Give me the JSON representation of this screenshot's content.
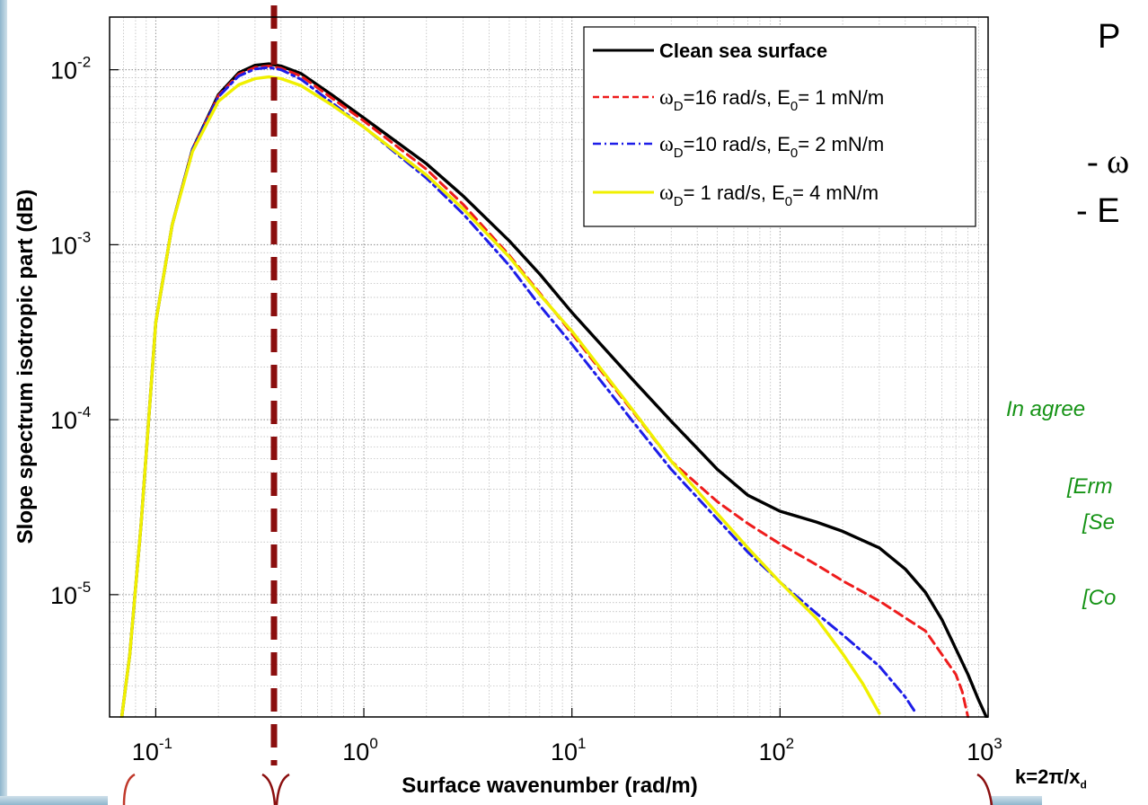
{
  "chart_data": {
    "type": "line",
    "title": "",
    "xlabel": "Surface wavenumber (rad/m)",
    "ylabel": "Slope spectrum isotropic part (dB)",
    "xscale": "log",
    "yscale": "log",
    "xlim": [
      0.06,
      1000
    ],
    "ylim": [
      2e-06,
      0.02
    ],
    "grid": true,
    "legend_position": "top-right",
    "x_ticks": [
      {
        "value": 0.1,
        "base": "10",
        "exp": "-1"
      },
      {
        "value": 1,
        "base": "10",
        "exp": "0"
      },
      {
        "value": 10,
        "base": "10",
        "exp": "1"
      },
      {
        "value": 100,
        "base": "10",
        "exp": "2"
      },
      {
        "value": 1000,
        "base": "10",
        "exp": "3"
      }
    ],
    "y_ticks": [
      {
        "value": 0.01,
        "base": "10",
        "exp": "-2"
      },
      {
        "value": 0.001,
        "base": "10",
        "exp": "-3"
      },
      {
        "value": 0.0001,
        "base": "10",
        "exp": "-4"
      },
      {
        "value": 1e-05,
        "base": "10",
        "exp": "-5"
      }
    ],
    "vertical_marker": {
      "x": 0.37,
      "color": "#8b0f0f"
    },
    "series": [
      {
        "name": "Clean sea surface",
        "color": "#000000",
        "dash": "solid",
        "bold": true,
        "points": [
          [
            0.067,
            1.5e-06
          ],
          [
            0.075,
            4.5e-06
          ],
          [
            0.085,
            2.5e-05
          ],
          [
            0.1,
            0.00036
          ],
          [
            0.12,
            0.0013
          ],
          [
            0.15,
            0.0035
          ],
          [
            0.2,
            0.0072
          ],
          [
            0.25,
            0.0096
          ],
          [
            0.3,
            0.0106
          ],
          [
            0.35,
            0.0108
          ],
          [
            0.4,
            0.0105
          ],
          [
            0.5,
            0.0095
          ],
          [
            0.7,
            0.0072
          ],
          [
            1,
            0.0053
          ],
          [
            2,
            0.0029
          ],
          [
            3,
            0.0019
          ],
          [
            5,
            0.00105
          ],
          [
            7,
            0.00068
          ],
          [
            10,
            0.00041
          ],
          [
            20,
            0.000165
          ],
          [
            30,
            9.8e-05
          ],
          [
            50,
            5.2e-05
          ],
          [
            70,
            3.7e-05
          ],
          [
            100,
            3e-05
          ],
          [
            150,
            2.6e-05
          ],
          [
            200,
            2.3e-05
          ],
          [
            300,
            1.85e-05
          ],
          [
            400,
            1.4e-05
          ],
          [
            500,
            1.03e-05
          ],
          [
            600,
            7.2e-06
          ],
          [
            700,
            4.9e-06
          ],
          [
            800,
            3.5e-06
          ],
          [
            900,
            2.5e-06
          ],
          [
            1000,
            1.9e-06
          ]
        ]
      },
      {
        "name": "ω_D=16 rad/s, E_0= 1 mN/m",
        "label_parts": [
          "ω",
          "D",
          "=16 rad/s, E",
          "0",
          "= 1 mN/m"
        ],
        "color": "#ee1c1c",
        "dash": "dashed",
        "bold": false,
        "points": [
          [
            0.067,
            1.5e-06
          ],
          [
            0.075,
            4.5e-06
          ],
          [
            0.085,
            2.5e-05
          ],
          [
            0.1,
            0.00036
          ],
          [
            0.12,
            0.0013
          ],
          [
            0.15,
            0.0035
          ],
          [
            0.2,
            0.0071
          ],
          [
            0.25,
            0.0094
          ],
          [
            0.3,
            0.0103
          ],
          [
            0.35,
            0.0105
          ],
          [
            0.4,
            0.0102
          ],
          [
            0.5,
            0.0092
          ],
          [
            0.7,
            0.0069
          ],
          [
            1,
            0.0051
          ],
          [
            2,
            0.0027
          ],
          [
            3,
            0.0017
          ],
          [
            5,
            0.00087
          ],
          [
            7,
            0.00053
          ],
          [
            10,
            0.00031
          ],
          [
            20,
            0.000108
          ],
          [
            30,
            5.8e-05
          ],
          [
            50,
            3.4e-05
          ],
          [
            70,
            2.55e-05
          ],
          [
            100,
            1.95e-05
          ],
          [
            150,
            1.48e-05
          ],
          [
            200,
            1.2e-05
          ],
          [
            300,
            9.2e-06
          ],
          [
            500,
            6.2e-06
          ],
          [
            700,
            3.5e-06
          ],
          [
            750,
            2.8e-06
          ],
          [
            800,
            2e-06
          ]
        ]
      },
      {
        "name": "ω_D=10 rad/s, E_0= 2 mN/m",
        "label_parts": [
          "ω",
          "D",
          "=10 rad/s, E",
          "0",
          "= 2 mN/m"
        ],
        "color": "#1d1de8",
        "dash": "dashdot",
        "bold": false,
        "points": [
          [
            0.067,
            1.5e-06
          ],
          [
            0.075,
            4.5e-06
          ],
          [
            0.085,
            2.5e-05
          ],
          [
            0.1,
            0.00036
          ],
          [
            0.12,
            0.0013
          ],
          [
            0.15,
            0.0035
          ],
          [
            0.2,
            0.007
          ],
          [
            0.25,
            0.0092
          ],
          [
            0.3,
            0.0101
          ],
          [
            0.35,
            0.0103
          ],
          [
            0.4,
            0.01
          ],
          [
            0.5,
            0.0088
          ],
          [
            0.7,
            0.0065
          ],
          [
            1,
            0.0047
          ],
          [
            2,
            0.0024
          ],
          [
            3,
            0.0015
          ],
          [
            5,
            0.00076
          ],
          [
            7,
            0.00045
          ],
          [
            10,
            0.00027
          ],
          [
            20,
            9.5e-05
          ],
          [
            30,
            5.2e-05
          ],
          [
            50,
            2.7e-05
          ],
          [
            70,
            1.75e-05
          ],
          [
            100,
            1.18e-05
          ],
          [
            150,
            7.8e-06
          ],
          [
            200,
            5.9e-06
          ],
          [
            300,
            3.9e-06
          ],
          [
            400,
            2.6e-06
          ],
          [
            450,
            2.1e-06
          ]
        ]
      },
      {
        "name": "ω_D= 1 rad/s, E_0= 4 mN/m",
        "label_parts": [
          "ω",
          "D",
          "= 1 rad/s, E",
          "0",
          "= 4 mN/m"
        ],
        "color": "#f0f000",
        "dash": "solid",
        "bold": true,
        "points": [
          [
            0.067,
            1.5e-06
          ],
          [
            0.075,
            4.5e-06
          ],
          [
            0.085,
            2.5e-05
          ],
          [
            0.1,
            0.00036
          ],
          [
            0.12,
            0.0013
          ],
          [
            0.15,
            0.0034
          ],
          [
            0.2,
            0.0066
          ],
          [
            0.25,
            0.0082
          ],
          [
            0.3,
            0.0089
          ],
          [
            0.35,
            0.0091
          ],
          [
            0.4,
            0.0089
          ],
          [
            0.5,
            0.0081
          ],
          [
            0.7,
            0.0063
          ],
          [
            1,
            0.0047
          ],
          [
            2,
            0.0025
          ],
          [
            3,
            0.0016
          ],
          [
            5,
            0.00085
          ],
          [
            7,
            0.00052
          ],
          [
            10,
            0.00032
          ],
          [
            20,
            0.00011
          ],
          [
            30,
            5.8e-05
          ],
          [
            50,
            2.9e-05
          ],
          [
            70,
            1.85e-05
          ],
          [
            100,
            1.18e-05
          ],
          [
            150,
            7.3e-06
          ],
          [
            200,
            4.6e-06
          ],
          [
            250,
            3.1e-06
          ],
          [
            300,
            2.1e-06
          ]
        ]
      }
    ]
  },
  "right_panel": {
    "heading": "P",
    "line1_symbol": "- ω",
    "line2_symbol": "- E",
    "green_intro": "In agree",
    "ref1": "[Erm",
    "ref2": "[Se",
    "ref3": "[Co",
    "k_formula": "k=2π/x",
    "k_subscript": "d"
  }
}
